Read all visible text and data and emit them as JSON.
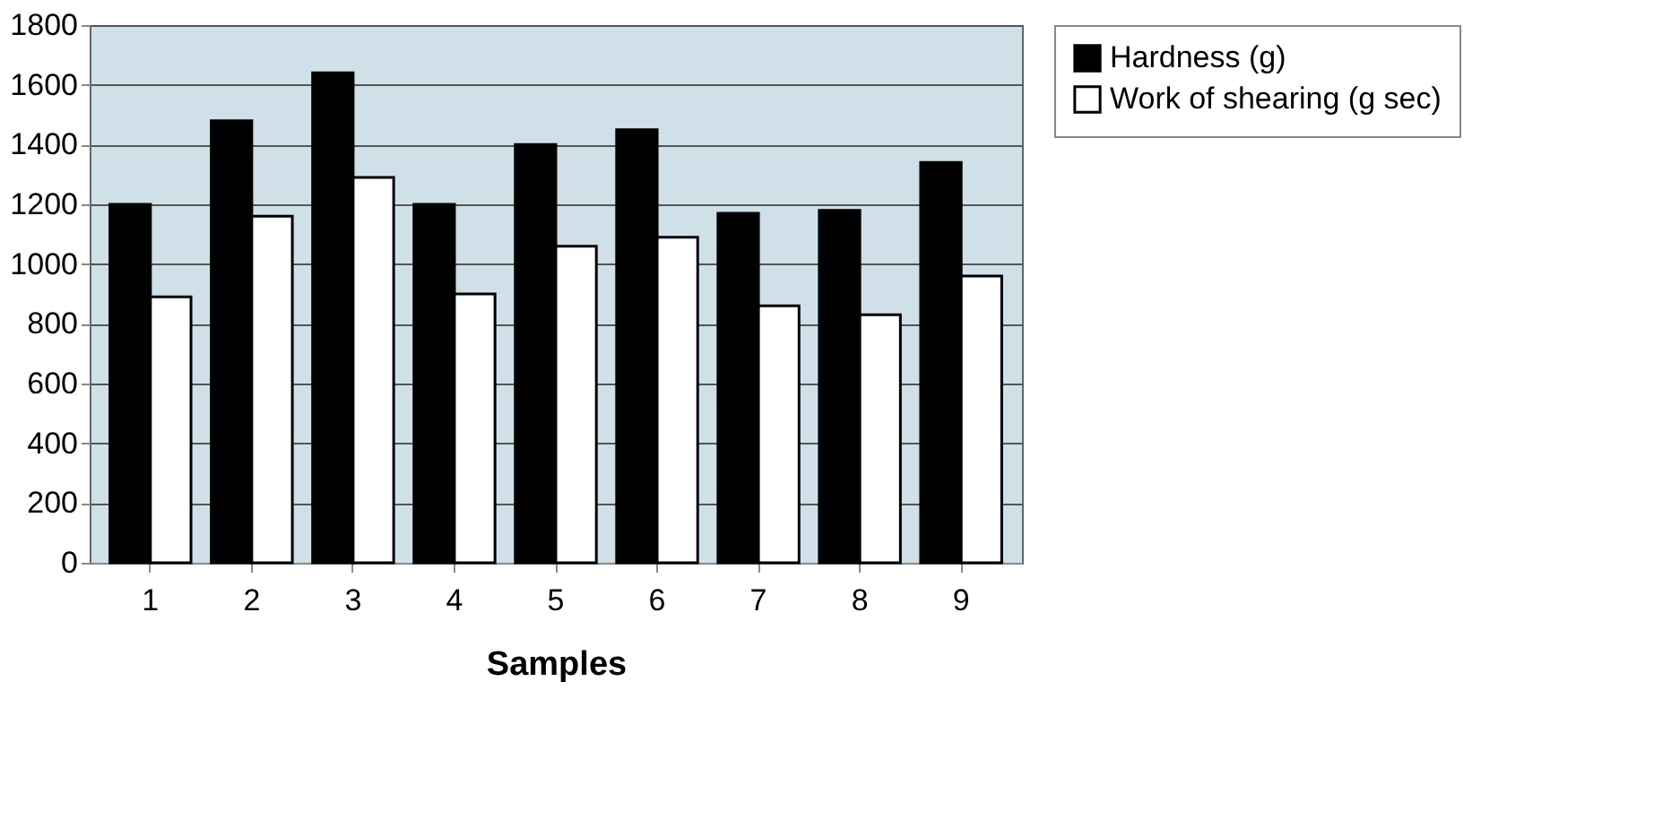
{
  "chart_data": {
    "type": "bar",
    "xlabel": "Samples",
    "categories": [
      "1",
      "2",
      "3",
      "4",
      "5",
      "6",
      "7",
      "8",
      "9"
    ],
    "series": [
      {
        "name": "Hardness (g)",
        "color": "#000000",
        "values": [
          1200,
          1480,
          1640,
          1200,
          1400,
          1450,
          1170,
          1180,
          1340
        ]
      },
      {
        "name": "Work of shearing (g sec)",
        "color": "#ffffff",
        "values": [
          890,
          1160,
          1290,
          900,
          1060,
          1090,
          860,
          830,
          960
        ]
      }
    ],
    "ylim": [
      0,
      1800
    ],
    "yticks": [
      0,
      200,
      400,
      600,
      800,
      1000,
      1200,
      1400,
      1600,
      1800
    ],
    "grid": "y",
    "legend": "right"
  }
}
